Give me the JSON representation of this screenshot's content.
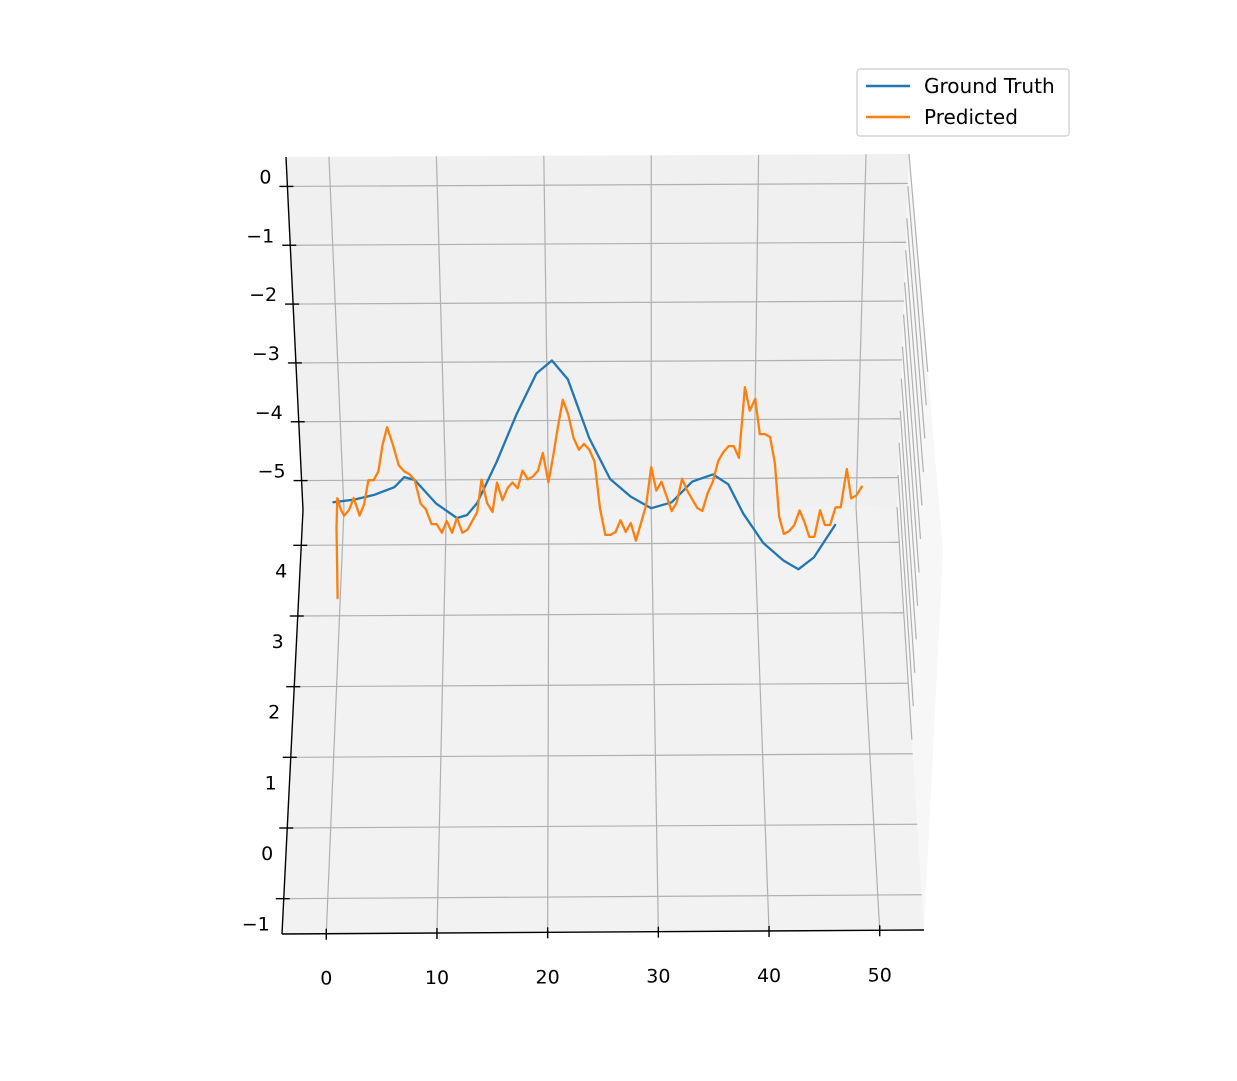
{
  "chart_data": {
    "type": "line",
    "projection": "3d",
    "title": "",
    "xlabel": "",
    "ylabel": "",
    "zlabel": "",
    "grid": true,
    "legend_position": "top-right",
    "x_ticks": [
      "0",
      "10",
      "20",
      "30",
      "40",
      "50"
    ],
    "back_axis_ticks": [
      "0",
      "−1",
      "−2",
      "−3",
      "−4",
      "−5"
    ],
    "front_axis_ticks": [
      "4",
      "3",
      "2",
      "1",
      "0",
      "−1"
    ],
    "xlim": [
      -4,
      54
    ],
    "back_axis_range": [
      -5.5,
      0.5
    ],
    "front_axis_range": [
      -1.5,
      4.5
    ],
    "series": [
      {
        "name": "Ground Truth",
        "color": "#1f77b4",
        "x": [
          -1,
          1,
          3,
          5,
          6,
          7,
          9,
          11,
          12,
          13,
          15,
          17,
          19,
          20.5,
          22,
          24,
          26,
          28,
          30,
          32,
          34,
          36,
          37.5,
          39,
          41,
          43,
          44.5,
          46,
          48
        ],
        "y": [
          -5.37,
          -5.33,
          -5.25,
          -5.12,
          -4.95,
          -5.0,
          -5.4,
          -5.65,
          -5.6,
          -5.4,
          -4.7,
          -3.9,
          -3.2,
          -2.98,
          -3.3,
          -4.3,
          -5.0,
          -5.3,
          -5.5,
          -5.4,
          -5.05,
          -4.93,
          -5.1,
          -5.6,
          -6.1,
          -6.4,
          -6.55,
          -6.35,
          -5.8
        ]
      },
      {
        "name": "Predicted",
        "color": "#ff7f0e",
        "x": [
          -1,
          -0.8,
          -0.6,
          -0.3,
          0,
          0.5,
          1,
          1.5,
          2,
          2.5,
          3,
          3.5,
          4,
          4.5,
          5,
          5.5,
          6,
          6.5,
          7,
          7.5,
          8,
          8.5,
          9,
          9.5,
          10,
          10.5,
          11,
          11.5,
          12,
          12.5,
          13,
          13.5,
          14,
          14.5,
          15,
          15.5,
          16,
          16.5,
          17,
          17.5,
          18,
          18.5,
          19,
          19.5,
          20,
          20.5,
          21,
          21.5,
          22,
          22.5,
          23,
          23.5,
          24,
          24.5,
          25,
          25.5,
          26,
          26.5,
          27,
          27.5,
          28,
          28.5,
          29,
          29.5,
          30,
          30.5,
          31,
          31.5,
          32,
          32.5,
          33,
          33.5,
          34,
          34.5,
          35,
          35.5,
          36,
          36.5,
          37,
          37.5,
          38,
          38.5,
          39,
          39.5,
          40,
          40.5,
          41,
          41.5,
          42,
          42.5,
          43,
          43.5,
          44,
          44.5,
          45,
          45.5,
          46,
          46.5,
          47,
          47.5,
          48,
          48.5,
          49,
          49.5,
          50,
          50.5
        ],
        "y": [
          -7.0,
          -5.8,
          -5.3,
          -5.5,
          -5.6,
          -5.5,
          -5.3,
          -5.6,
          -5.4,
          -5.0,
          -5.0,
          -4.85,
          -4.4,
          -4.1,
          -4.4,
          -4.75,
          -4.85,
          -4.9,
          -5.0,
          -5.4,
          -5.5,
          -5.75,
          -5.75,
          -5.9,
          -5.7,
          -5.9,
          -5.65,
          -5.9,
          -5.85,
          -5.7,
          -5.55,
          -5.0,
          -5.4,
          -5.55,
          -5.05,
          -5.35,
          -5.15,
          -5.05,
          -5.15,
          -4.85,
          -5.0,
          -4.95,
          -4.85,
          -4.55,
          -5.05,
          -4.6,
          -4.1,
          -3.65,
          -3.9,
          -4.3,
          -4.5,
          -4.4,
          -4.5,
          -4.7,
          -5.5,
          -5.95,
          -5.95,
          -5.9,
          -5.7,
          -5.9,
          -5.75,
          -6.05,
          -5.75,
          -5.45,
          -4.8,
          -5.2,
          -5.05,
          -5.3,
          -5.55,
          -5.4,
          -5.0,
          -5.2,
          -5.35,
          -5.5,
          -5.55,
          -5.25,
          -5.05,
          -4.7,
          -4.55,
          -4.45,
          -4.45,
          -4.65,
          -3.45,
          -3.85,
          -3.65,
          -4.25,
          -4.25,
          -4.3,
          -4.75,
          -5.65,
          -5.95,
          -5.9,
          -5.8,
          -5.55,
          -5.75,
          -6.0,
          -6.0,
          -5.55,
          -5.8,
          -5.8,
          -5.5,
          -5.5,
          -4.85,
          -5.35,
          -5.3,
          -5.15
        ]
      }
    ]
  }
}
